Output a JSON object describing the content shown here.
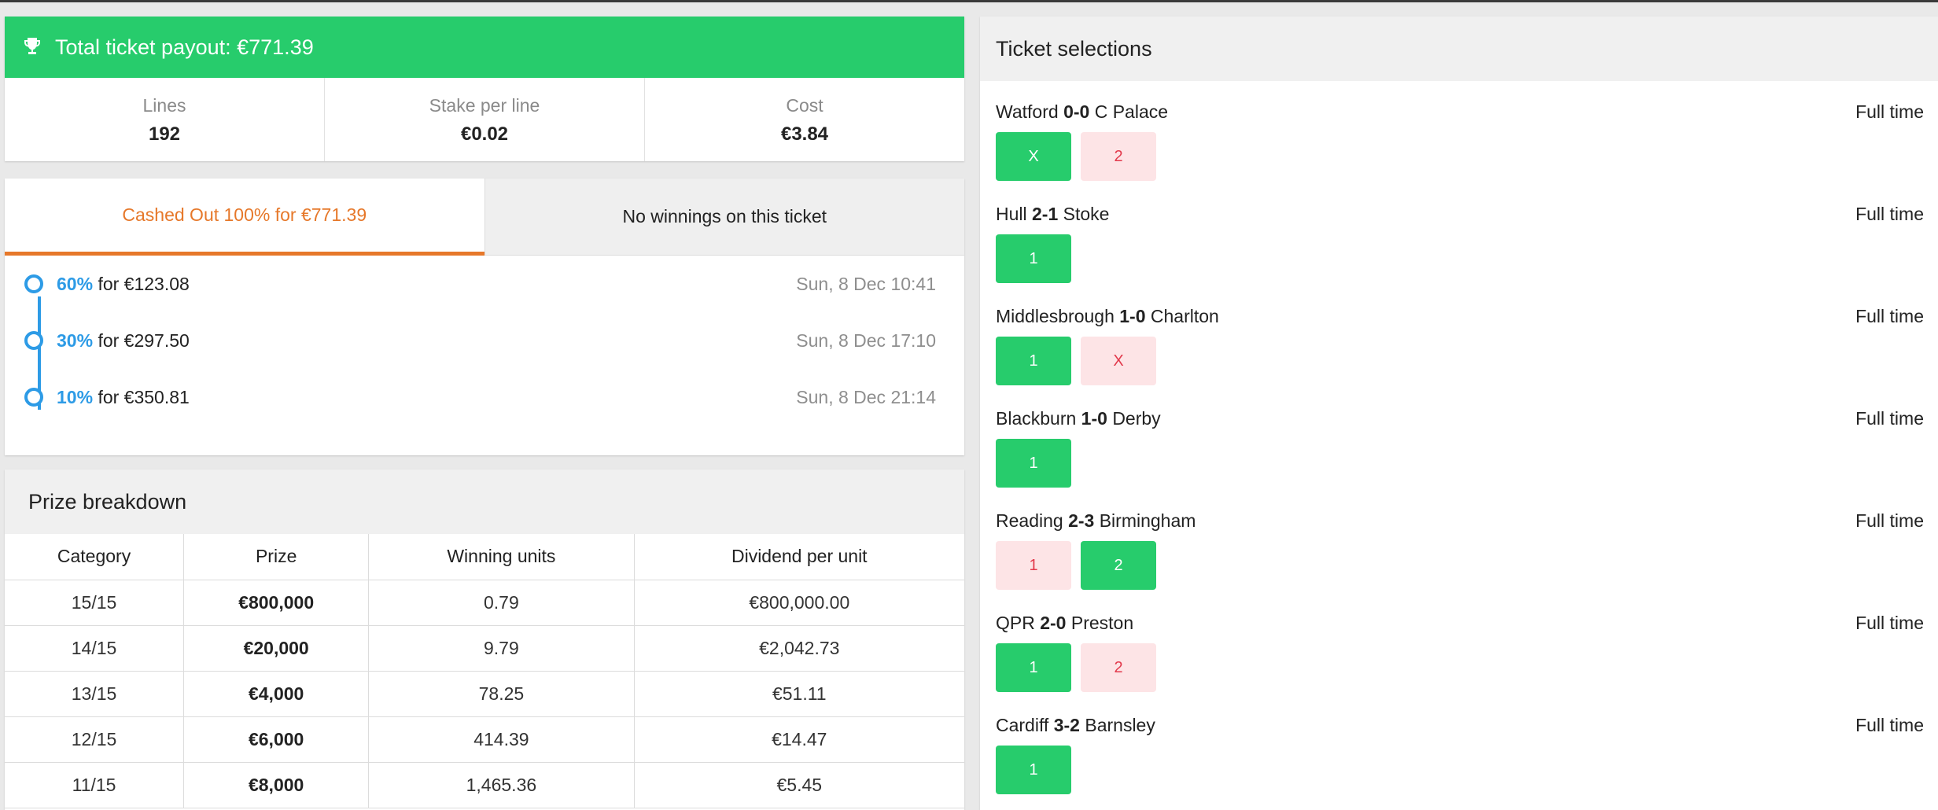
{
  "payout": {
    "title": "Total ticket payout: €771.39",
    "stats": [
      {
        "label": "Lines",
        "value": "192"
      },
      {
        "label": "Stake per line",
        "value": "€0.02"
      },
      {
        "label": "Cost",
        "value": "€3.84"
      }
    ]
  },
  "cashout": {
    "tab_active": "Cashed Out 100% for €771.39",
    "tab_inactive": "No winnings on this ticket",
    "joiner": "for",
    "history": [
      {
        "pct": "60%",
        "amount": "€123.08",
        "date": "Sun, 8 Dec 10:41"
      },
      {
        "pct": "30%",
        "amount": "€297.50",
        "date": "Sun, 8 Dec 17:10"
      },
      {
        "pct": "10%",
        "amount": "€350.81",
        "date": "Sun, 8 Dec 21:14"
      }
    ]
  },
  "prize": {
    "title": "Prize breakdown",
    "columns": [
      "Category",
      "Prize",
      "Winning units",
      "Dividend per unit"
    ],
    "rows": [
      [
        "15/15",
        "€800,000",
        "0.79",
        "€800,000.00"
      ],
      [
        "14/15",
        "€20,000",
        "9.79",
        "€2,042.73"
      ],
      [
        "13/15",
        "€4,000",
        "78.25",
        "€51.11"
      ],
      [
        "12/15",
        "€6,000",
        "414.39",
        "€14.47"
      ],
      [
        "11/15",
        "€8,000",
        "1,465.36",
        "€5.45"
      ]
    ]
  },
  "selections": {
    "title": "Ticket selections",
    "matches": [
      {
        "home": "Watford",
        "score": "0-0",
        "away": "C Palace",
        "period": "Full time",
        "picks": [
          {
            "label": "X",
            "status": "win"
          },
          {
            "label": "2",
            "status": "lose"
          }
        ]
      },
      {
        "home": "Hull",
        "score": "2-1",
        "away": "Stoke",
        "period": "Full time",
        "picks": [
          {
            "label": "1",
            "status": "win"
          }
        ]
      },
      {
        "home": "Middlesbrough",
        "score": "1-0",
        "away": "Charlton",
        "period": "Full time",
        "picks": [
          {
            "label": "1",
            "status": "win"
          },
          {
            "label": "X",
            "status": "lose"
          }
        ]
      },
      {
        "home": "Blackburn",
        "score": "1-0",
        "away": "Derby",
        "period": "Full time",
        "picks": [
          {
            "label": "1",
            "status": "win"
          }
        ]
      },
      {
        "home": "Reading",
        "score": "2-3",
        "away": "Birmingham",
        "period": "Full time",
        "picks": [
          {
            "label": "1",
            "status": "lose"
          },
          {
            "label": "2",
            "status": "win"
          }
        ]
      },
      {
        "home": "QPR",
        "score": "2-0",
        "away": "Preston",
        "period": "Full time",
        "picks": [
          {
            "label": "1",
            "status": "win"
          },
          {
            "label": "2",
            "status": "lose"
          }
        ]
      },
      {
        "home": "Cardiff",
        "score": "3-2",
        "away": "Barnsley",
        "period": "Full time",
        "picks": [
          {
            "label": "1",
            "status": "win"
          }
        ]
      }
    ]
  },
  "colors": {
    "accent_green": "#27cc6c",
    "cashout_orange": "#e6782a",
    "timeline_blue": "#2d9be6",
    "lose_bg": "#fde4e6",
    "lose_text": "#e2384b"
  }
}
